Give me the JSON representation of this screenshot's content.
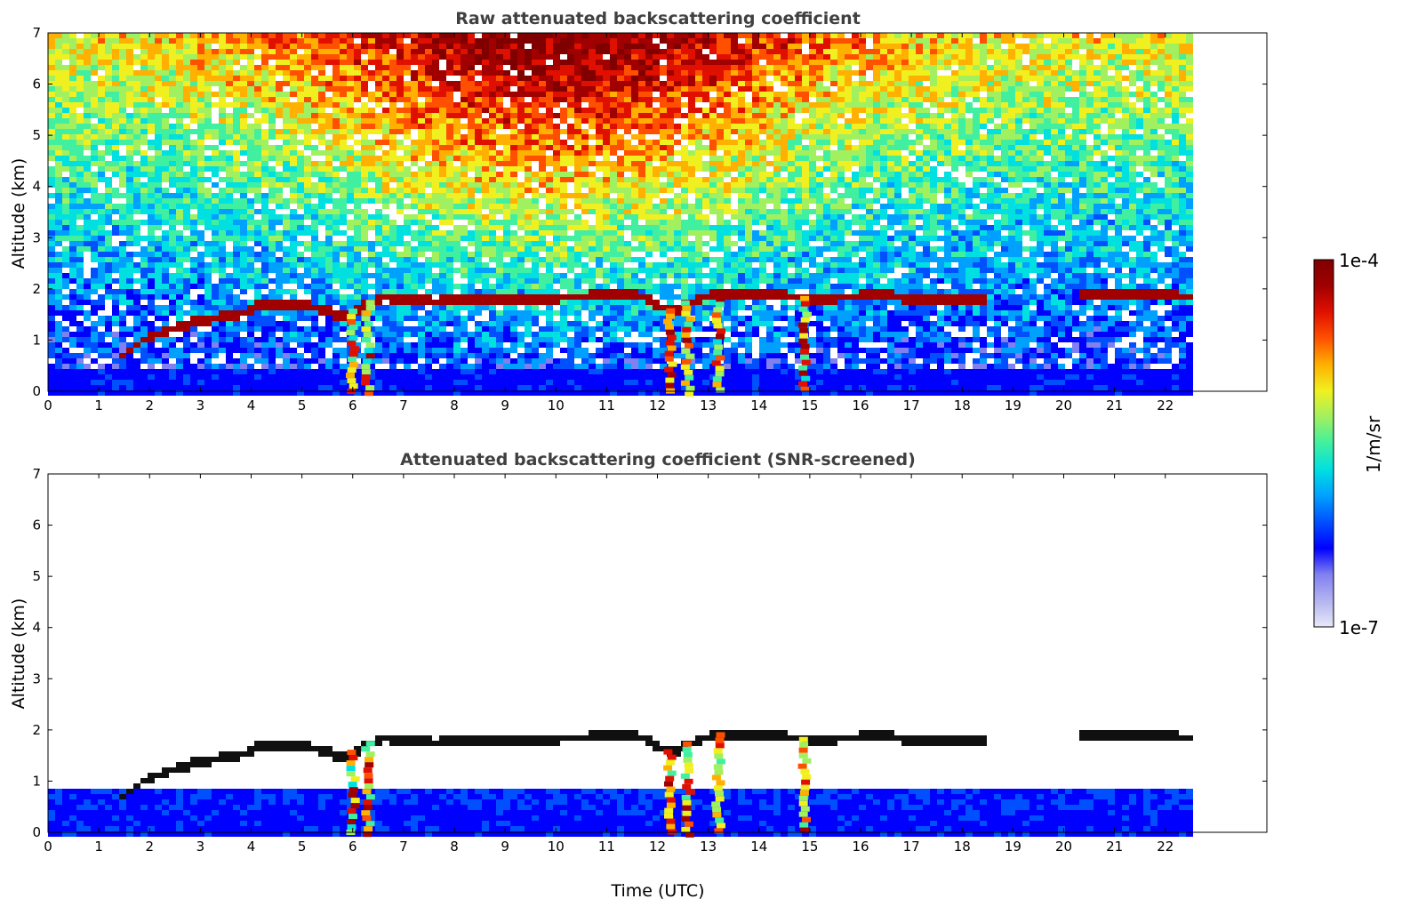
{
  "chart_data": [
    {
      "type": "heatmap",
      "title": "Raw attenuated backscattering coefficient",
      "xlabel": "",
      "ylabel": "Altitude (km)",
      "xlim": [
        0,
        24
      ],
      "ylim": [
        0,
        7
      ],
      "x_ticks": [
        "0",
        "1",
        "2",
        "3",
        "4",
        "5",
        "6",
        "7",
        "8",
        "9",
        "10",
        "11",
        "12",
        "13",
        "14",
        "15",
        "16",
        "17",
        "18",
        "19",
        "20",
        "21",
        "22"
      ],
      "y_ticks": [
        "0",
        "1",
        "2",
        "3",
        "4",
        "5",
        "6",
        "7"
      ],
      "data_end_time": 22.45,
      "screened": false,
      "cloud_layer": [
        {
          "t": 1.4,
          "alt": 0.75
        },
        {
          "t": 1.8,
          "alt": 1.05
        },
        {
          "t": 2.5,
          "alt": 1.3
        },
        {
          "t": 3.0,
          "alt": 1.45
        },
        {
          "t": 3.7,
          "alt": 1.55
        },
        {
          "t": 4.0,
          "alt": 1.7
        },
        {
          "t": 5.0,
          "alt": 1.75
        },
        {
          "t": 5.8,
          "alt": 1.5
        },
        {
          "t": 6.5,
          "alt": 1.9
        },
        {
          "t": 7.5,
          "alt": 1.8
        },
        {
          "t": 8.5,
          "alt": 1.85
        },
        {
          "t": 10.0,
          "alt": 1.88
        },
        {
          "t": 11.5,
          "alt": 1.95
        },
        {
          "t": 12.2,
          "alt": 1.6
        },
        {
          "t": 13.0,
          "alt": 1.95
        },
        {
          "t": 14.0,
          "alt": 1.98
        },
        {
          "t": 15.0,
          "alt": 1.85
        },
        {
          "t": 16.5,
          "alt": 1.95
        },
        {
          "t": 17.0,
          "alt": 1.8
        },
        {
          "t": 18.4,
          "alt": 1.88
        },
        {
          "t": 20.3,
          "alt": 1.92
        },
        {
          "t": 21.0,
          "alt": 1.95
        },
        {
          "t": 22.45,
          "alt": 1.9
        }
      ],
      "precipitation_shafts": [
        6.0,
        6.3,
        12.25,
        12.6,
        13.2,
        14.9
      ]
    },
    {
      "type": "heatmap",
      "title": "Attenuated backscattering coefficient (SNR-screened)",
      "xlabel": "Time (UTC)",
      "ylabel": "Altitude (km)",
      "xlim": [
        0,
        24
      ],
      "ylim": [
        0,
        7
      ],
      "x_ticks": [
        "0",
        "1",
        "2",
        "3",
        "4",
        "5",
        "6",
        "7",
        "8",
        "9",
        "10",
        "11",
        "12",
        "13",
        "14",
        "15",
        "16",
        "17",
        "18",
        "19",
        "20",
        "21",
        "22"
      ],
      "y_ticks": [
        "0",
        "1",
        "2",
        "3",
        "4",
        "5",
        "6",
        "7"
      ],
      "data_end_time": 22.45,
      "screened": true,
      "cloud_layer": [
        {
          "t": 1.4,
          "alt": 0.75
        },
        {
          "t": 1.8,
          "alt": 1.05
        },
        {
          "t": 2.5,
          "alt": 1.3
        },
        {
          "t": 3.0,
          "alt": 1.45
        },
        {
          "t": 3.7,
          "alt": 1.55
        },
        {
          "t": 4.0,
          "alt": 1.7
        },
        {
          "t": 5.0,
          "alt": 1.75
        },
        {
          "t": 5.8,
          "alt": 1.5
        },
        {
          "t": 6.5,
          "alt": 1.9
        },
        {
          "t": 7.5,
          "alt": 1.8
        },
        {
          "t": 8.5,
          "alt": 1.85
        },
        {
          "t": 10.0,
          "alt": 1.88
        },
        {
          "t": 11.5,
          "alt": 1.95
        },
        {
          "t": 12.2,
          "alt": 1.6
        },
        {
          "t": 13.0,
          "alt": 1.95
        },
        {
          "t": 14.0,
          "alt": 1.98
        },
        {
          "t": 15.0,
          "alt": 1.85
        },
        {
          "t": 16.5,
          "alt": 1.95
        },
        {
          "t": 17.0,
          "alt": 1.8
        },
        {
          "t": 18.4,
          "alt": 1.88
        },
        {
          "t": 20.3,
          "alt": 1.92
        },
        {
          "t": 21.0,
          "alt": 1.95
        },
        {
          "t": 22.45,
          "alt": 1.9
        }
      ],
      "precipitation_shafts": [
        6.0,
        6.3,
        12.25,
        12.6,
        13.2,
        14.9
      ]
    }
  ],
  "colorbar": {
    "max_label": "1e-4",
    "min_label": "1e-7",
    "units_label": "1/m/sr",
    "colors": [
      "#e8e8f8",
      "#b4b4f0",
      "#8080f0",
      "#0000ff",
      "#0050ff",
      "#00a0ff",
      "#00e0e0",
      "#40f0a0",
      "#a0f060",
      "#f0f020",
      "#ffb000",
      "#ff5000",
      "#e01000",
      "#a00000",
      "#800000"
    ]
  }
}
